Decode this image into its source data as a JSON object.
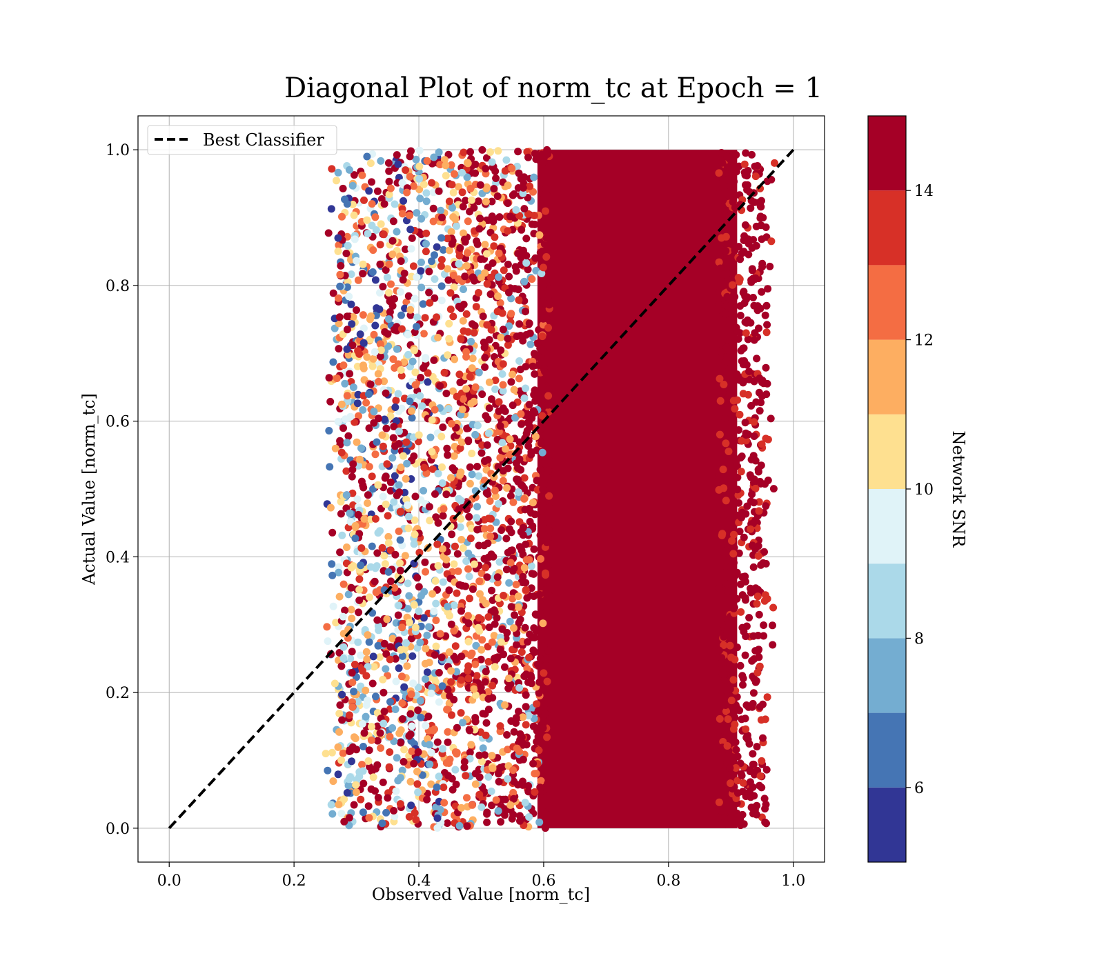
{
  "chart_data": {
    "type": "scatter",
    "title": "Diagonal Plot of norm_tc at Epoch = 1",
    "xlabel": "Observed Value [norm_tc]",
    "ylabel": "Actual Value [norm_tc]",
    "xlim": [
      -0.05,
      1.05
    ],
    "ylim": [
      -0.05,
      1.05
    ],
    "xticks": [
      0.0,
      0.2,
      0.4,
      0.6,
      0.8,
      1.0
    ],
    "yticks": [
      0.0,
      0.2,
      0.4,
      0.6,
      0.8,
      1.0
    ],
    "xtick_labels": [
      "0.0",
      "0.2",
      "0.4",
      "0.6",
      "0.8",
      "1.0"
    ],
    "ytick_labels": [
      "0.0",
      "0.2",
      "0.4",
      "0.6",
      "0.8",
      "1.0"
    ],
    "grid": true,
    "legend": {
      "placement": "upper-left",
      "entries": [
        "Best Classifier"
      ]
    },
    "reference_line": {
      "name": "Best Classifier",
      "x": [
        0.0,
        1.0
      ],
      "y": [
        0.0,
        1.0
      ],
      "color": "#000000",
      "style": "dashed"
    },
    "scatter_distribution": {
      "x_range": [
        0.25,
        0.97
      ],
      "y_range": [
        0.0,
        1.0
      ],
      "dense_region_x": [
        0.6,
        0.9
      ],
      "snr_trend": "color rises with observed value; x < 0.45 mixed low-to-high SNR, x > 0.6 saturated at max SNR"
    },
    "colorbar": {
      "label": "Network SNR",
      "range": [
        5,
        15
      ],
      "ticks": [
        6,
        8,
        10,
        12,
        14
      ],
      "tick_labels": [
        "6",
        "8",
        "10",
        "12",
        "14"
      ],
      "levels": 10,
      "colors": [
        "#313695",
        "#4575b4",
        "#74add1",
        "#abd9e9",
        "#e0f3f8",
        "#fee090",
        "#fdae61",
        "#f46d43",
        "#d73027",
        "#a50026"
      ]
    }
  }
}
